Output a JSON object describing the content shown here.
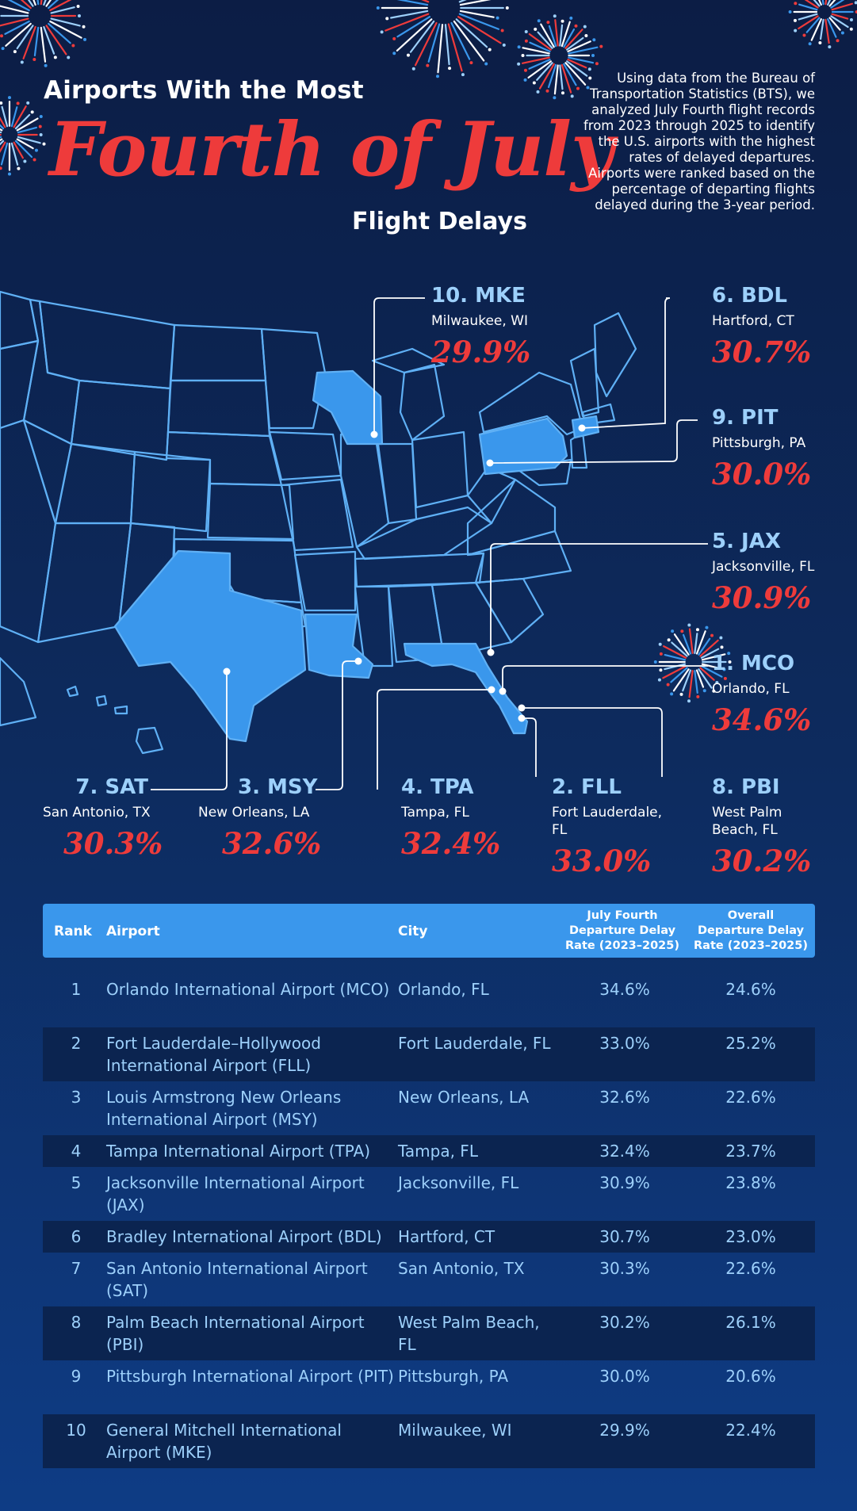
{
  "header": {
    "title_line1": "Airports With the Most",
    "title_line2": "Fourth of July",
    "title_line3": "Flight Delays",
    "intro": "Using data from the Bureau of Transportation Statistics (BTS), we analyzed July Fourth flight records from 2023 through 2025 to identify the U.S. airports with the highest rates of delayed departures. Airports were ranked based on the percentage of departing flights delayed during the 3-year period."
  },
  "colors": {
    "background_top": "#0c1d45",
    "background_bottom": "#0e3c85",
    "accent_red": "#ee3b3b",
    "accent_blue": "#3a97ec",
    "highlight_state": "#3a97ec",
    "label_blue": "#9dd0fb",
    "state_outline": "#5fb0f5"
  },
  "callouts": [
    {
      "code": "10. MKE",
      "city": "Milwaukee, WI",
      "pct": "29.9%"
    },
    {
      "code": "6. BDL",
      "city": "Hartford, CT",
      "pct": "30.7%"
    },
    {
      "code": "9. PIT",
      "city": "Pittsburgh, PA",
      "pct": "30.0%"
    },
    {
      "code": "5. JAX",
      "city": "Jacksonville, FL",
      "pct": "30.9%"
    },
    {
      "code": "1. MCO",
      "city": "Orlando, FL",
      "pct": "34.6%"
    },
    {
      "code": "7. SAT",
      "city": "San Antonio, TX",
      "pct": "30.3%"
    },
    {
      "code": "3. MSY",
      "city": "New Orleans, LA",
      "pct": "32.6%"
    },
    {
      "code": "4. TPA",
      "city": "Tampa, FL",
      "pct": "32.4%"
    },
    {
      "code": "2. FLL",
      "city": "Fort Lauderdale, FL",
      "pct": "33.0%"
    },
    {
      "code": "8. PBI",
      "city": "West Palm Beach, FL",
      "pct": "30.2%"
    }
  ],
  "table": {
    "headers": {
      "rank": "Rank",
      "airport": "Airport",
      "city": "City",
      "july": "July Fourth Departure Delay Rate (2023–2025)",
      "overall": "Overall Departure Delay Rate (2023–2025)"
    },
    "rows": [
      {
        "rank": "1",
        "airport": "Orlando International Airport (MCO)",
        "city": "Orlando, FL",
        "july": "34.6%",
        "overall": "24.6%"
      },
      {
        "rank": "2",
        "airport": "Fort Lauderdale–Hollywood International Airport (FLL)",
        "city": "Fort Lauderdale, FL",
        "july": "33.0%",
        "overall": "25.2%"
      },
      {
        "rank": "3",
        "airport": "Louis Armstrong New Orleans International Airport (MSY)",
        "city": "New Orleans, LA",
        "july": "32.6%",
        "overall": "22.6%"
      },
      {
        "rank": "4",
        "airport": "Tampa International Airport (TPA)",
        "city": "Tampa, FL",
        "july": "32.4%",
        "overall": "23.7%"
      },
      {
        "rank": "5",
        "airport": "Jacksonville International Airport (JAX)",
        "city": "Jacksonville, FL",
        "july": "30.9%",
        "overall": "23.8%"
      },
      {
        "rank": "6",
        "airport": "Bradley International Airport (BDL)",
        "city": "Hartford, CT",
        "july": "30.7%",
        "overall": "23.0%"
      },
      {
        "rank": "7",
        "airport": "San Antonio International Airport (SAT)",
        "city": "San Antonio, TX",
        "july": "30.3%",
        "overall": "22.6%"
      },
      {
        "rank": "8",
        "airport": "Palm Beach International Airport (PBI)",
        "city": "West Palm Beach, FL",
        "july": "30.2%",
        "overall": "26.1%"
      },
      {
        "rank": "9",
        "airport": "Pittsburgh International Airport (PIT)",
        "city": "Pittsburgh, PA",
        "july": "30.0%",
        "overall": "20.6%"
      },
      {
        "rank": "10",
        "airport": "General Mitchell International Airport (MKE)",
        "city": "Milwaukee, WI",
        "july": "29.9%",
        "overall": "22.4%"
      }
    ]
  },
  "chart_data": {
    "type": "table",
    "columns": [
      "Rank",
      "Airport",
      "City",
      "July Fourth Departure Delay Rate (2023–2025)",
      "Overall Departure Delay Rate (2023–2025)"
    ],
    "categories": [
      "MCO",
      "FLL",
      "MSY",
      "TPA",
      "JAX",
      "BDL",
      "SAT",
      "PBI",
      "PIT",
      "MKE"
    ],
    "series": [
      {
        "name": "July Fourth Departure Delay Rate (2023–2025)",
        "values": [
          34.6,
          33.0,
          32.6,
          32.4,
          30.9,
          30.7,
          30.3,
          30.2,
          30.0,
          29.9
        ]
      },
      {
        "name": "Overall Departure Delay Rate (2023–2025)",
        "values": [
          24.6,
          25.2,
          22.6,
          23.7,
          23.8,
          23.0,
          22.6,
          26.1,
          20.6,
          22.4
        ]
      }
    ]
  }
}
